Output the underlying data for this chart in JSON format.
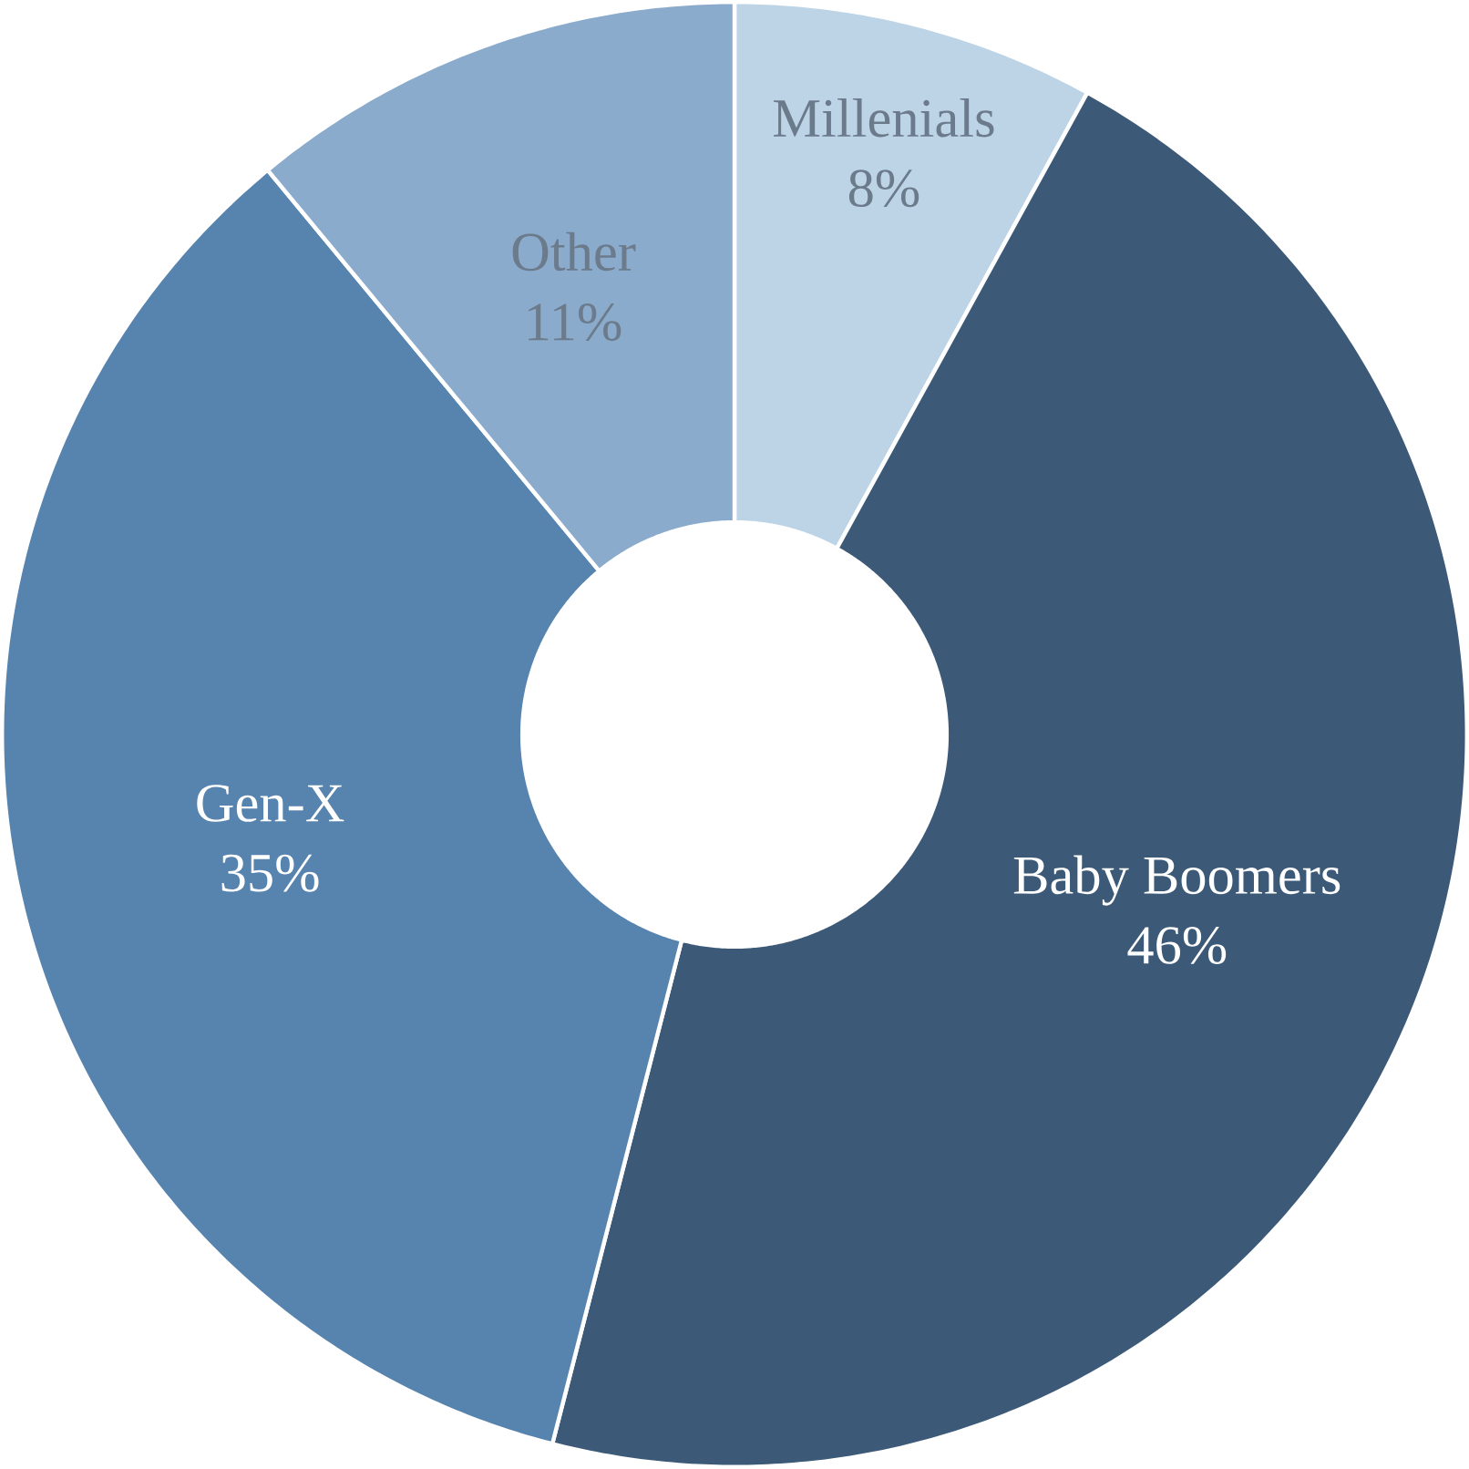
{
  "chart_data": {
    "type": "donut",
    "categories": [
      "Millenials",
      "Baby Boomers",
      "Gen-X",
      "Other"
    ],
    "values": [
      8,
      46,
      35,
      11
    ],
    "value_labels": [
      "8%",
      "46%",
      "35%",
      "11%"
    ],
    "colors": [
      "#bdd4e7",
      "#3c5a78",
      "#5784ae",
      "#8aabcc"
    ]
  }
}
